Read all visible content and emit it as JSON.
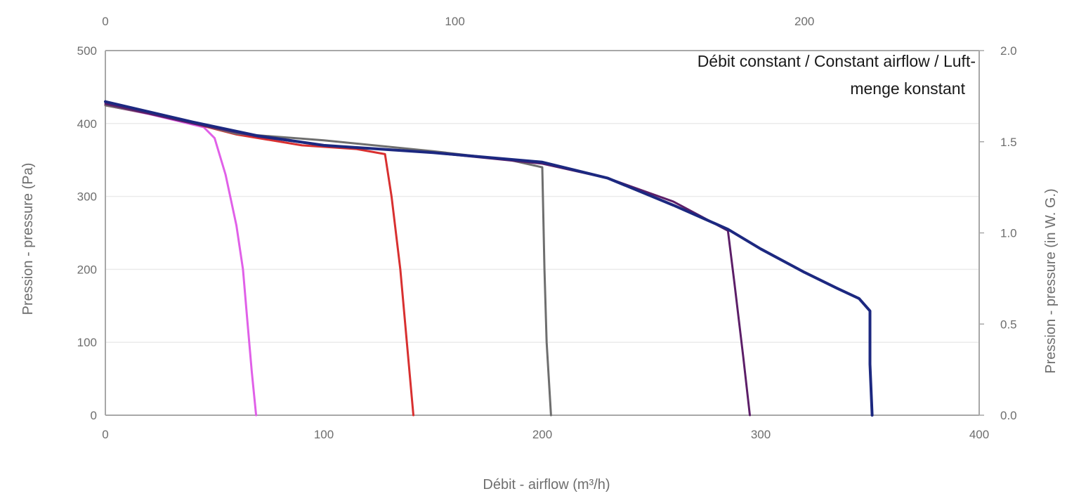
{
  "chart_data": {
    "type": "line",
    "title": "",
    "annotation": [
      "Débit constant / Constant airflow / Luft-",
      "menge konstant"
    ],
    "xlabel": "Débit - airflow (m³/h)",
    "ylabel": "Pression - pressure (Pa)",
    "y2label": "Pression - pressure (in W. G.)",
    "xlim": [
      0,
      400
    ],
    "ylim": [
      0,
      500
    ],
    "x2lim": [
      0,
      250
    ],
    "y2lim": [
      0,
      2.0
    ],
    "xticks": [
      "0",
      "100",
      "200",
      "300",
      "400"
    ],
    "yticks": [
      "0",
      "100",
      "200",
      "300",
      "400",
      "500"
    ],
    "x2ticks": [
      "0",
      "100",
      "200"
    ],
    "y2ticks": [
      "0.0",
      "0.5",
      "1.0",
      "1.5",
      "2.0"
    ],
    "grid": true,
    "colors": {
      "grid": "#ebebeb",
      "axis": "#a8a8a8",
      "text": "#6e6e6e"
    },
    "series": [
      {
        "color": "#e060e8",
        "points": [
          [
            0,
            425
          ],
          [
            20,
            413
          ],
          [
            45,
            395
          ],
          [
            50,
            380
          ],
          [
            55,
            330
          ],
          [
            60,
            260
          ],
          [
            63,
            200
          ],
          [
            65,
            130
          ],
          [
            67,
            60
          ],
          [
            69,
            0
          ]
        ]
      },
      {
        "color": "#d83030",
        "points": [
          [
            0,
            425
          ],
          [
            30,
            408
          ],
          [
            60,
            385
          ],
          [
            90,
            370
          ],
          [
            115,
            365
          ],
          [
            128,
            358
          ],
          [
            131,
            300
          ],
          [
            135,
            200
          ],
          [
            138,
            100
          ],
          [
            141,
            0
          ]
        ]
      },
      {
        "color": "#6e6e6e",
        "points": [
          [
            0,
            425
          ],
          [
            30,
            408
          ],
          [
            60,
            386
          ],
          [
            100,
            377
          ],
          [
            150,
            362
          ],
          [
            185,
            350
          ],
          [
            200,
            340
          ],
          [
            201,
            200
          ],
          [
            202,
            100
          ],
          [
            204,
            0
          ]
        ]
      },
      {
        "color": "#5c1e68",
        "points": [
          [
            0,
            427
          ],
          [
            40,
            400
          ],
          [
            70,
            382
          ],
          [
            100,
            370
          ],
          [
            150,
            360
          ],
          [
            200,
            345
          ],
          [
            230,
            325
          ],
          [
            260,
            293
          ],
          [
            285,
            253
          ],
          [
            288,
            180
          ],
          [
            292,
            80
          ],
          [
            295,
            0
          ]
        ]
      },
      {
        "color": "#1c2880",
        "points": [
          [
            0,
            430
          ],
          [
            40,
            402
          ],
          [
            70,
            383
          ],
          [
            100,
            370
          ],
          [
            150,
            360
          ],
          [
            200,
            347
          ],
          [
            230,
            325
          ],
          [
            260,
            288
          ],
          [
            285,
            255
          ],
          [
            300,
            228
          ],
          [
            320,
            196
          ],
          [
            335,
            174
          ],
          [
            345,
            160
          ],
          [
            350,
            143
          ],
          [
            350,
            70
          ],
          [
            351,
            0
          ]
        ]
      }
    ]
  }
}
